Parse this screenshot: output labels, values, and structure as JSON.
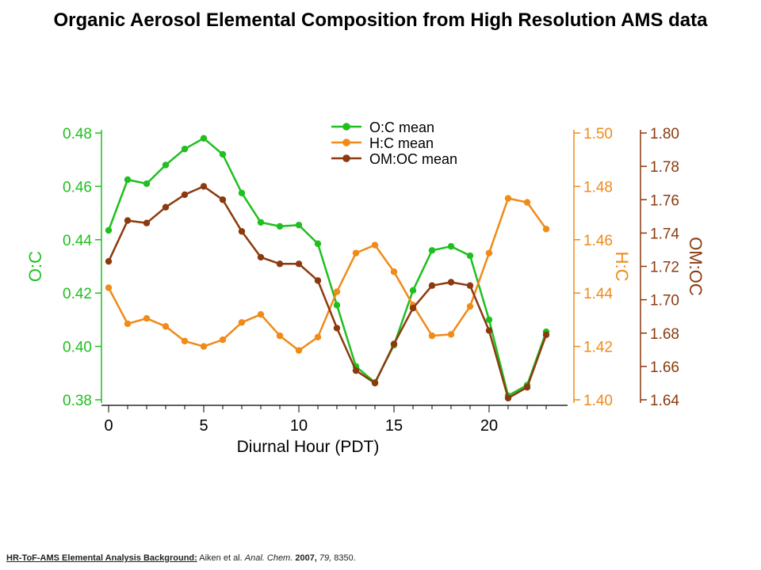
{
  "title": "Organic Aerosol Elemental Composition from High Resolution AMS data",
  "footer": {
    "label": "HR-ToF-AMS  Elemental Analysis  Background:",
    "authors": " Aiken et al. ",
    "journal": "Anal. Chem.",
    "year": " 2007,",
    "volume": " 79,",
    "pages": " 8350."
  },
  "colors": {
    "oc": "#1fbf1f",
    "hc": "#f08a18",
    "omoc": "#8b3a0f"
  },
  "chart_data": {
    "type": "line",
    "xlabel": "Diurnal Hour (PDT)",
    "xlim": [
      -0.5,
      24
    ],
    "xticks": [
      0,
      5,
      10,
      15,
      20
    ],
    "x": [
      0,
      1,
      2,
      3,
      4,
      5,
      6,
      7,
      8,
      9,
      10,
      11,
      12,
      13,
      14,
      15,
      16,
      17,
      18,
      19,
      20,
      21,
      22,
      23
    ],
    "axes": {
      "left": {
        "label": "O:C",
        "lim": [
          0.38,
          0.48
        ],
        "ticks": [
          "0.38",
          "0.40",
          "0.42",
          "0.44",
          "0.46",
          "0.48"
        ]
      },
      "right1": {
        "label": "H:C",
        "lim": [
          1.4,
          1.5
        ],
        "ticks": [
          "1.40",
          "1.42",
          "1.44",
          "1.46",
          "1.48",
          "1.50"
        ]
      },
      "right2": {
        "label": "OM:OC",
        "lim": [
          1.64,
          1.8
        ],
        "ticks": [
          "1.64",
          "1.66",
          "1.68",
          "1.70",
          "1.72",
          "1.74",
          "1.76",
          "1.78",
          "1.80"
        ]
      }
    },
    "series": [
      {
        "name": "O:C mean",
        "axis": "left",
        "color": "#1fbf1f",
        "values": [
          0.4435,
          0.4625,
          0.461,
          0.468,
          0.474,
          0.478,
          0.472,
          0.4575,
          0.4465,
          0.445,
          0.4455,
          0.4385,
          0.4155,
          0.3925,
          0.3865,
          0.4005,
          0.421,
          0.436,
          0.4375,
          0.434,
          0.41,
          0.3815,
          0.3855,
          0.4055
        ]
      },
      {
        "name": "H:C mean",
        "axis": "right1",
        "color": "#f08a18",
        "values": [
          1.442,
          1.4285,
          1.4305,
          1.4275,
          1.422,
          1.42,
          1.4225,
          1.429,
          1.432,
          1.424,
          1.4185,
          1.4235,
          1.4405,
          1.455,
          1.458,
          1.448,
          1.4355,
          1.424,
          1.4245,
          1.435,
          1.455,
          1.4755,
          1.474,
          1.464
        ]
      },
      {
        "name": "OM:OC mean",
        "axis": "right2",
        "color": "#8b3a0f",
        "values": [
          1.723,
          1.7475,
          1.746,
          1.7555,
          1.763,
          1.768,
          1.76,
          1.741,
          1.7255,
          1.7215,
          1.7215,
          1.7115,
          1.683,
          1.6575,
          1.65,
          1.6735,
          1.695,
          1.7085,
          1.7105,
          1.7085,
          1.6815,
          1.641,
          1.6475,
          1.679
        ]
      }
    ]
  }
}
